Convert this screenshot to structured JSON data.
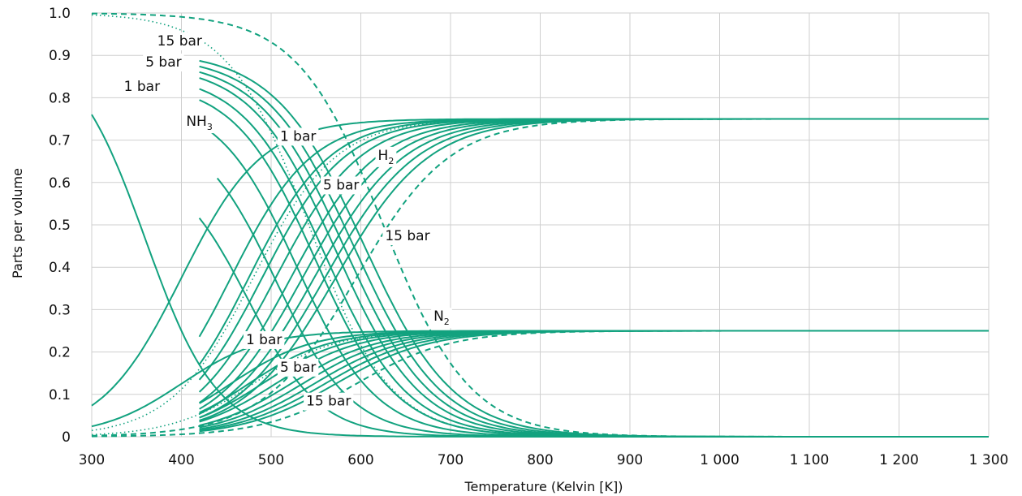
{
  "chart_data": {
    "type": "line",
    "title": "",
    "xlabel": "Temperature (Kelvin [K])",
    "ylabel": "Parts per volume",
    "xlim": [
      300,
      1300
    ],
    "ylim": [
      0,
      1.0
    ],
    "x_ticks": [
      "300",
      "400",
      "500",
      "600",
      "700",
      "800",
      "900",
      "1 000",
      "1 100",
      "1 200",
      "1 300"
    ],
    "y_ticks": [
      "0",
      "0.1",
      "0.2",
      "0.3",
      "0.4",
      "0.5",
      "0.6",
      "0.7",
      "0.8",
      "0.9",
      "1.0"
    ],
    "grid": true,
    "line_color": "#12a27f",
    "series": [
      {
        "species": "NH3",
        "k": 3.86,
        "x0": 345,
        "w": 45,
        "xstart": 300,
        "style": "solid"
      },
      {
        "species": "NH3",
        "k": 0.65,
        "x0": 474,
        "w": 40,
        "xstart": 420,
        "style": "solid"
      },
      {
        "species": "NH3",
        "k": 0.74,
        "x0": 505,
        "w": 42,
        "xstart": 440,
        "style": "solid"
      },
      {
        "species": "NH3",
        "k": 0.8,
        "x0": 529,
        "w": 44,
        "xstart": 420,
        "style": "solid"
      },
      {
        "species": "NH3",
        "k": 0.84,
        "x0": 549,
        "w": 45,
        "xstart": 420,
        "style": "solid"
      },
      {
        "species": "NH3",
        "k": 0.86,
        "x0": 560,
        "w": 46,
        "xstart": 420,
        "style": "solid"
      },
      {
        "species": "NH3",
        "k": 0.88,
        "x0": 572,
        "w": 47,
        "xstart": 420,
        "style": "solid"
      },
      {
        "species": "NH3",
        "k": 0.89,
        "x0": 582,
        "w": 48,
        "xstart": 420,
        "style": "solid"
      },
      {
        "species": "NH3",
        "k": 0.9,
        "x0": 592,
        "w": 49,
        "xstart": 420,
        "style": "solid"
      },
      {
        "species": "NH3",
        "k": 0.91,
        "x0": 603,
        "w": 50,
        "xstart": 420,
        "style": "solid"
      },
      {
        "species": "NH3",
        "k": 1.0,
        "x0": 542,
        "w": 45,
        "xstart": 300,
        "style": "dotted"
      },
      {
        "species": "NH3",
        "k": 1.0,
        "x0": 625,
        "w": 48,
        "xstart": 300,
        "style": "dashed"
      },
      {
        "species": "H2",
        "x0": 400,
        "w": 45,
        "xstart": 300,
        "style": "solid"
      },
      {
        "species": "H2",
        "x0": 455,
        "w": 45,
        "xstart": 420,
        "style": "solid"
      },
      {
        "species": "H2",
        "x0": 475,
        "w": 45,
        "xstart": 420,
        "style": "solid"
      },
      {
        "species": "H2",
        "x0": 490,
        "w": 46,
        "xstart": 420,
        "style": "solid"
      },
      {
        "species": "H2",
        "x0": 505,
        "w": 47,
        "xstart": 420,
        "style": "solid"
      },
      {
        "species": "H2",
        "x0": 522,
        "w": 48,
        "xstart": 420,
        "style": "solid"
      },
      {
        "species": "H2",
        "x0": 535,
        "w": 49,
        "xstart": 420,
        "style": "solid"
      },
      {
        "species": "H2",
        "x0": 548,
        "w": 50,
        "xstart": 420,
        "style": "solid"
      },
      {
        "species": "H2",
        "x0": 560,
        "w": 51,
        "xstart": 420,
        "style": "solid"
      },
      {
        "species": "H2",
        "x0": 572,
        "w": 52,
        "xstart": 420,
        "style": "solid"
      },
      {
        "species": "H2",
        "x0": 480,
        "w": 46,
        "xstart": 300,
        "style": "dotted"
      },
      {
        "species": "H2",
        "x0": 595,
        "w": 52,
        "xstart": 300,
        "style": "dashed"
      },
      {
        "species": "N2",
        "x0": 400,
        "w": 45,
        "xstart": 300,
        "style": "solid"
      },
      {
        "species": "N2",
        "x0": 455,
        "w": 45,
        "xstart": 420,
        "style": "solid"
      },
      {
        "species": "N2",
        "x0": 475,
        "w": 45,
        "xstart": 420,
        "style": "solid"
      },
      {
        "species": "N2",
        "x0": 490,
        "w": 46,
        "xstart": 420,
        "style": "solid"
      },
      {
        "species": "N2",
        "x0": 505,
        "w": 47,
        "xstart": 420,
        "style": "solid"
      },
      {
        "species": "N2",
        "x0": 522,
        "w": 48,
        "xstart": 420,
        "style": "solid"
      },
      {
        "species": "N2",
        "x0": 535,
        "w": 49,
        "xstart": 420,
        "style": "solid"
      },
      {
        "species": "N2",
        "x0": 548,
        "w": 50,
        "xstart": 420,
        "style": "solid"
      },
      {
        "species": "N2",
        "x0": 560,
        "w": 51,
        "xstart": 420,
        "style": "solid"
      },
      {
        "species": "N2",
        "x0": 572,
        "w": 52,
        "xstart": 420,
        "style": "solid"
      },
      {
        "species": "N2",
        "x0": 480,
        "w": 46,
        "xstart": 300,
        "style": "dotted"
      },
      {
        "species": "N2",
        "x0": 595,
        "w": 52,
        "xstart": 300,
        "style": "dashed"
      }
    ],
    "annotations": [
      {
        "id": "nh3-15bar",
        "text": "15 bar",
        "x": 398,
        "y": 0.935
      },
      {
        "id": "nh3-5bar",
        "text": "5 bar",
        "x": 380,
        "y": 0.885
      },
      {
        "id": "nh3-1bar",
        "text": "1 bar",
        "x": 356,
        "y": 0.828
      },
      {
        "id": "nh3-species",
        "text": "NH",
        "sub": "3",
        "x": 420,
        "y": 0.745
      },
      {
        "id": "h2-1bar",
        "text": "1 bar",
        "x": 530,
        "y": 0.71
      },
      {
        "id": "h2-species",
        "text": "H",
        "sub": "2",
        "x": 628,
        "y": 0.665
      },
      {
        "id": "h2-5bar",
        "text": "5 bar",
        "x": 578,
        "y": 0.595
      },
      {
        "id": "h2-15bar",
        "text": "15 bar",
        "x": 652,
        "y": 0.475
      },
      {
        "id": "n2-species",
        "text": "N",
        "sub": "2",
        "x": 690,
        "y": 0.285
      },
      {
        "id": "n2-1bar",
        "text": "1 bar",
        "x": 492,
        "y": 0.23
      },
      {
        "id": "n2-5bar",
        "text": "5 bar",
        "x": 530,
        "y": 0.165
      },
      {
        "id": "n2-15bar",
        "text": "15 bar",
        "x": 564,
        "y": 0.085
      }
    ]
  }
}
